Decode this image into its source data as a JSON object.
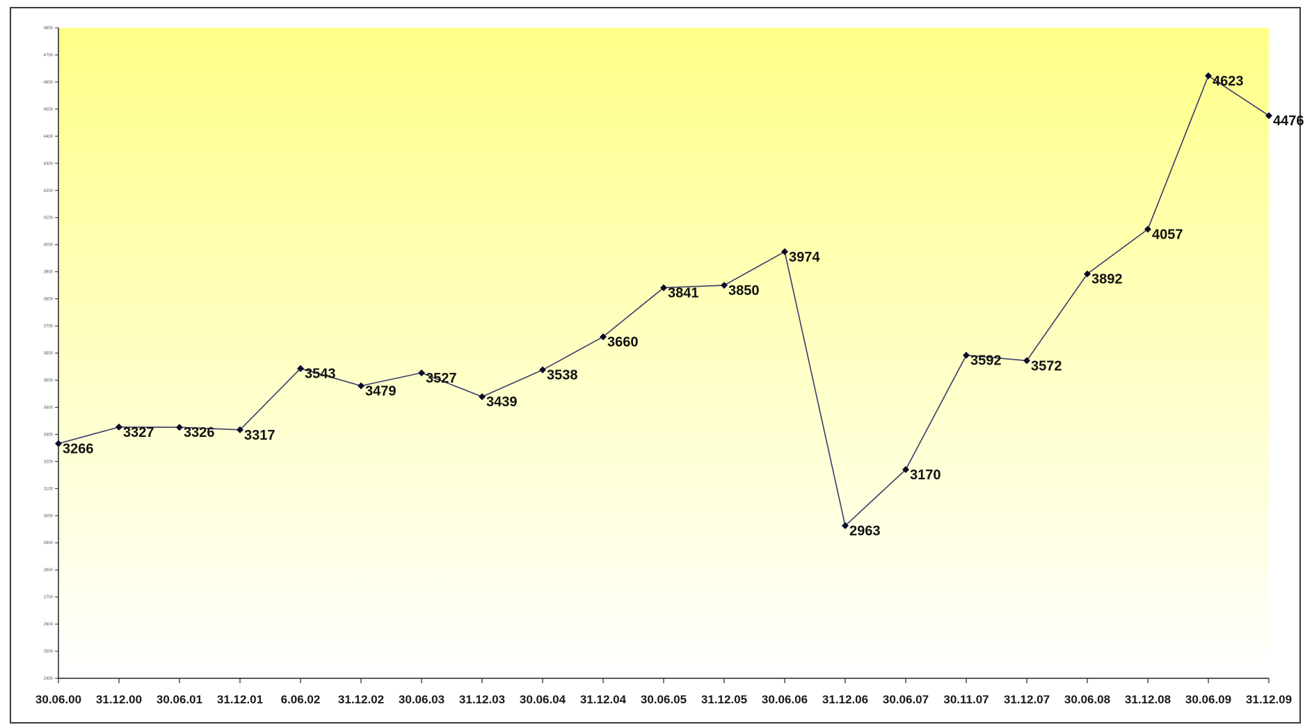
{
  "chart_data": {
    "type": "line",
    "title": "",
    "xlabel": "",
    "ylabel": "",
    "x": [
      "30.06.00",
      "31.12.00",
      "30.06.01",
      "31.12.01",
      "6.06.02",
      "31.12.02",
      "30.06.03",
      "31.12.03",
      "30.06.04",
      "31.12.04",
      "30.06.05",
      "31.12.05",
      "30.06.06",
      "31.12.06",
      "30.06.07",
      "30.11.07",
      "31.12.07",
      "30.06.08",
      "31.12.08",
      "30.06.09",
      "31.12.09"
    ],
    "series": [
      {
        "values": [
          3266,
          3327,
          3326,
          3317,
          3543,
          3479,
          3527,
          3439,
          3538,
          3660,
          3841,
          3850,
          3974,
          2963,
          3170,
          3592,
          3572,
          3892,
          4057,
          4623,
          4476
        ]
      }
    ],
    "ylim": [
      2400,
      4800
    ],
    "yticks": [
      2400,
      2500,
      2600,
      2700,
      2800,
      2900,
      3000,
      3100,
      3200,
      3300,
      3400,
      3500,
      3600,
      3700,
      3800,
      3900,
      4000,
      4100,
      4200,
      4300,
      4400,
      4500,
      4600,
      4700,
      4800
    ],
    "grid": false,
    "legend": "none",
    "colors": {
      "background_top": "#ffff88",
      "background_bottom": "#ffffff",
      "line": "#3a3a6a",
      "marker": "#0a0a2a"
    }
  }
}
